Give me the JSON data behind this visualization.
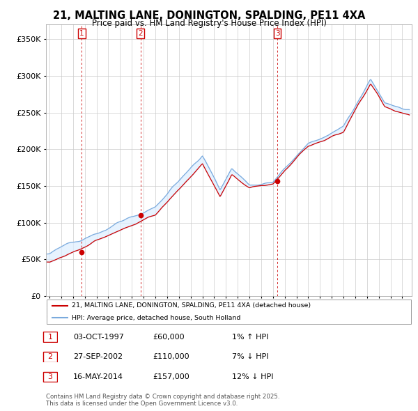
{
  "title": "21, MALTING LANE, DONINGTON, SPALDING, PE11 4XA",
  "subtitle": "Price paid vs. HM Land Registry's House Price Index (HPI)",
  "legend_label_red": "21, MALTING LANE, DONINGTON, SPALDING, PE11 4XA (detached house)",
  "legend_label_blue": "HPI: Average price, detached house, South Holland",
  "transactions": [
    {
      "num": 1,
      "date": "03-OCT-1997",
      "price": 60000,
      "hpi_diff": "1% ↑ HPI",
      "year": 1997.75
    },
    {
      "num": 2,
      "date": "27-SEP-2002",
      "price": 110000,
      "hpi_diff": "7% ↓ HPI",
      "year": 2002.73
    },
    {
      "num": 3,
      "date": "16-MAY-2014",
      "price": 157000,
      "hpi_diff": "12% ↓ HPI",
      "year": 2014.37
    }
  ],
  "footer": "Contains HM Land Registry data © Crown copyright and database right 2025.\nThis data is licensed under the Open Government Licence v3.0.",
  "ylim": [
    0,
    370000
  ],
  "yticks": [
    0,
    50000,
    100000,
    150000,
    200000,
    250000,
    300000,
    350000
  ],
  "ytick_labels": [
    "£0",
    "£50K",
    "£100K",
    "£150K",
    "£200K",
    "£250K",
    "£300K",
    "£350K"
  ],
  "red_color": "#cc0000",
  "blue_color": "#7aaadd",
  "fill_color": "#ddeeff",
  "bg_color": "#ffffff",
  "grid_color": "#cccccc",
  "vline_color": "#cc0000",
  "xlim_start": 1994.7,
  "xlim_end": 2025.8
}
